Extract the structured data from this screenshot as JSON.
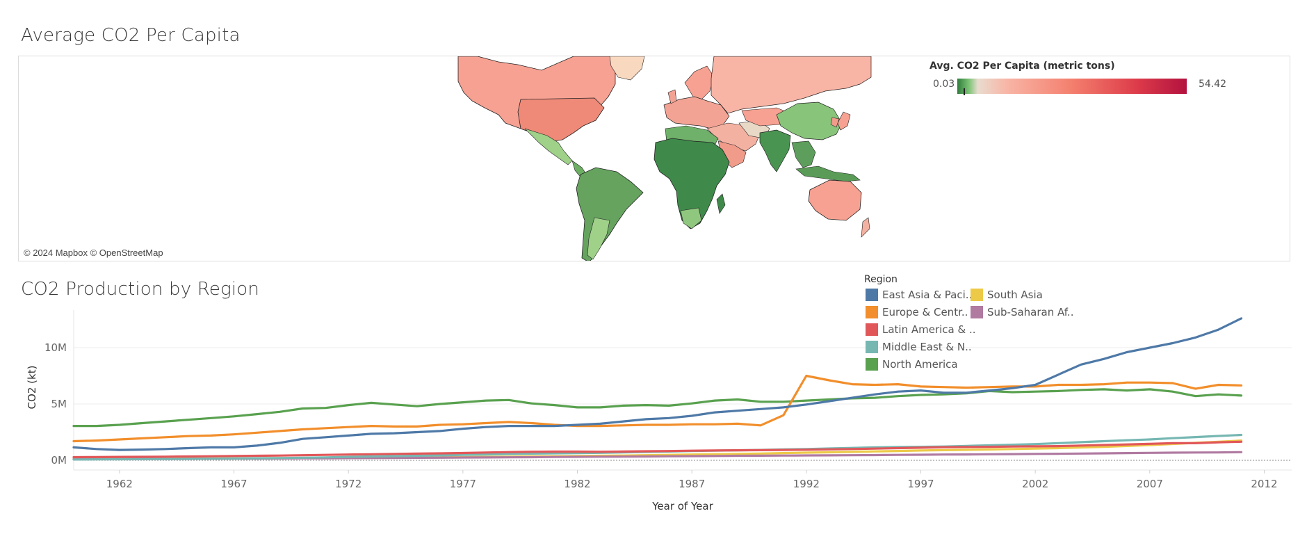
{
  "map": {
    "title": "Average CO2 Per Capita",
    "attribution": "© 2024 Mapbox © OpenStreetMap",
    "legend": {
      "title": "Avg. CO2 Per Capita (metric tons)",
      "min_label": "0.03",
      "max_label": "54.42"
    },
    "colors": {
      "low": "#2f7d3c",
      "mid": "#f8b4a5",
      "high": "#b3123f"
    }
  },
  "chart_data": {
    "type": "line",
    "title": "CO2 Production by Region",
    "xlabel": "Year of Year",
    "ylabel": "CO2 (kt)",
    "x_ticks": [
      "1962",
      "1967",
      "1972",
      "1977",
      "1982",
      "1987",
      "1992",
      "1997",
      "2002",
      "2007",
      "2012"
    ],
    "y_ticks": [
      "0M",
      "5M",
      "10M"
    ],
    "xlim": [
      1960,
      2011
    ],
    "ylim": [
      0,
      13000000
    ],
    "legend_title": "Region",
    "legend_placement": "top-right",
    "x": [
      1960,
      1961,
      1962,
      1963,
      1964,
      1965,
      1966,
      1967,
      1968,
      1969,
      1970,
      1971,
      1972,
      1973,
      1974,
      1975,
      1976,
      1977,
      1978,
      1979,
      1980,
      1981,
      1982,
      1983,
      1984,
      1985,
      1986,
      1987,
      1988,
      1989,
      1990,
      1991,
      1992,
      1993,
      1994,
      1995,
      1996,
      1997,
      1998,
      1999,
      2000,
      2001,
      2002,
      2003,
      2004,
      2005,
      2006,
      2007,
      2008,
      2009,
      2010,
      2011
    ],
    "series": [
      {
        "name": "East Asia & Paci..",
        "color": "#4e79a7",
        "values": [
          1150000,
          1000000,
          920000,
          950000,
          1000000,
          1080000,
          1150000,
          1150000,
          1300000,
          1550000,
          1900000,
          2050000,
          2200000,
          2350000,
          2400000,
          2500000,
          2600000,
          2800000,
          2950000,
          3050000,
          3050000,
          3050000,
          3150000,
          3250000,
          3450000,
          3650000,
          3750000,
          3950000,
          4250000,
          4400000,
          4550000,
          4700000,
          4950000,
          5250000,
          5550000,
          5850000,
          6100000,
          6200000,
          6000000,
          6000000,
          6200000,
          6400000,
          6700000,
          7600000,
          8500000,
          9000000,
          9600000,
          10000000,
          10400000,
          10900000,
          11600000,
          12600000
        ]
      },
      {
        "name": "Europe & Centr..",
        "color": "#f28e2b",
        "values": [
          1700000,
          1750000,
          1850000,
          1950000,
          2050000,
          2150000,
          2200000,
          2300000,
          2450000,
          2600000,
          2750000,
          2850000,
          2950000,
          3050000,
          3000000,
          3000000,
          3150000,
          3200000,
          3300000,
          3400000,
          3300000,
          3150000,
          3050000,
          3050000,
          3100000,
          3150000,
          3150000,
          3200000,
          3200000,
          3250000,
          3100000,
          4000000,
          7500000,
          7100000,
          6750000,
          6700000,
          6750000,
          6550000,
          6500000,
          6450000,
          6500000,
          6550000,
          6550000,
          6700000,
          6700000,
          6750000,
          6900000,
          6900000,
          6850000,
          6350000,
          6700000,
          6650000
        ]
      },
      {
        "name": "Latin America & ..",
        "color": "#e15759",
        "values": [
          280000,
          290000,
          300000,
          310000,
          320000,
          340000,
          360000,
          380000,
          400000,
          420000,
          450000,
          480000,
          510000,
          540000,
          570000,
          590000,
          620000,
          650000,
          690000,
          730000,
          760000,
          770000,
          770000,
          760000,
          780000,
          800000,
          820000,
          850000,
          870000,
          890000,
          900000,
          920000,
          940000,
          970000,
          1000000,
          1040000,
          1080000,
          1120000,
          1160000,
          1180000,
          1200000,
          1220000,
          1240000,
          1260000,
          1310000,
          1360000,
          1410000,
          1460000,
          1520000,
          1520000,
          1600000,
          1650000
        ]
      },
      {
        "name": "Middle East & N..",
        "color": "#76b7b2",
        "values": [
          70000,
          80000,
          90000,
          100000,
          110000,
          125000,
          140000,
          160000,
          180000,
          200000,
          230000,
          260000,
          300000,
          340000,
          370000,
          400000,
          440000,
          480000,
          520000,
          560000,
          590000,
          620000,
          640000,
          660000,
          700000,
          740000,
          780000,
          820000,
          860000,
          890000,
          920000,
          960000,
          1000000,
          1050000,
          1100000,
          1150000,
          1180000,
          1200000,
          1220000,
          1280000,
          1330000,
          1380000,
          1440000,
          1520000,
          1610000,
          1700000,
          1780000,
          1850000,
          1960000,
          2060000,
          2160000,
          2250000
        ]
      },
      {
        "name": "North America",
        "color": "#59a14f",
        "values": [
          3050000,
          3050000,
          3150000,
          3300000,
          3450000,
          3600000,
          3750000,
          3900000,
          4100000,
          4300000,
          4600000,
          4650000,
          4900000,
          5100000,
          4950000,
          4800000,
          5000000,
          5150000,
          5300000,
          5350000,
          5050000,
          4900000,
          4700000,
          4700000,
          4850000,
          4900000,
          4850000,
          5050000,
          5300000,
          5400000,
          5200000,
          5200000,
          5300000,
          5400000,
          5500000,
          5550000,
          5700000,
          5800000,
          5850000,
          5950000,
          6150000,
          6050000,
          6100000,
          6150000,
          6250000,
          6300000,
          6200000,
          6300000,
          6100000,
          5700000,
          5850000,
          5750000
        ]
      },
      {
        "name": "South Asia",
        "color": "#edc948",
        "values": [
          120000,
          125000,
          130000,
          140000,
          145000,
          150000,
          160000,
          170000,
          180000,
          190000,
          200000,
          210000,
          220000,
          230000,
          240000,
          250000,
          270000,
          280000,
          300000,
          320000,
          340000,
          360000,
          380000,
          400000,
          420000,
          450000,
          480000,
          510000,
          540000,
          570000,
          600000,
          640000,
          680000,
          710000,
          750000,
          790000,
          830000,
          870000,
          900000,
          930000,
          960000,
          1000000,
          1040000,
          1080000,
          1140000,
          1200000,
          1270000,
          1350000,
          1450000,
          1550000,
          1650000,
          1750000
        ]
      },
      {
        "name": "Sub-Saharan Af..",
        "color": "#b07aa1",
        "values": [
          100000,
          105000,
          110000,
          115000,
          120000,
          125000,
          135000,
          145000,
          150000,
          160000,
          170000,
          180000,
          190000,
          200000,
          210000,
          220000,
          230000,
          245000,
          255000,
          265000,
          280000,
          295000,
          310000,
          320000,
          330000,
          340000,
          355000,
          370000,
          385000,
          400000,
          410000,
          420000,
          430000,
          440000,
          450000,
          465000,
          480000,
          495000,
          510000,
          520000,
          535000,
          550000,
          565000,
          580000,
          600000,
          620000,
          640000,
          660000,
          680000,
          690000,
          700000,
          720000
        ]
      }
    ]
  }
}
